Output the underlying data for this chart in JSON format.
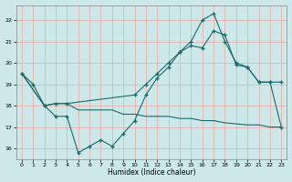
{
  "xlabel": "Humidex (Indice chaleur)",
  "xlim": [
    -0.5,
    23.5
  ],
  "ylim": [
    15.5,
    22.7
  ],
  "yticks": [
    16,
    17,
    18,
    19,
    20,
    21,
    22
  ],
  "xticks": [
    0,
    1,
    2,
    3,
    4,
    5,
    6,
    7,
    8,
    9,
    10,
    11,
    12,
    13,
    14,
    15,
    16,
    17,
    18,
    19,
    20,
    21,
    22,
    23
  ],
  "bg_color": "#cce8e8",
  "line_color": "#1a6b6b",
  "grid_color": "#e8b0b0",
  "line1_x": [
    0,
    1,
    2,
    3,
    4,
    5,
    6,
    7,
    8,
    9,
    10,
    11,
    12,
    13,
    14,
    15,
    16,
    17,
    18,
    19,
    20,
    21,
    22,
    23
  ],
  "line1_y": [
    19.5,
    19.0,
    18.0,
    17.5,
    17.5,
    15.8,
    16.1,
    16.4,
    16.1,
    16.7,
    17.3,
    18.5,
    19.3,
    19.8,
    20.5,
    21.0,
    22.0,
    22.3,
    21.0,
    20.0,
    19.8,
    19.1,
    19.1,
    17.0
  ],
  "line2_x": [
    0,
    2,
    3,
    4,
    5,
    6,
    7,
    8,
    9,
    10,
    11,
    12,
    13,
    14,
    15,
    16,
    17,
    18,
    20,
    21,
    22,
    23
  ],
  "line2_y": [
    19.5,
    18.0,
    18.1,
    18.1,
    17.8,
    17.8,
    17.8,
    17.8,
    17.6,
    17.6,
    17.5,
    17.5,
    17.5,
    17.4,
    17.4,
    17.3,
    17.3,
    17.2,
    17.1,
    17.1,
    17.0,
    17.0
  ],
  "line3_x": [
    0,
    2,
    3,
    4,
    10,
    11,
    12,
    13,
    14,
    15,
    16,
    17,
    18,
    19,
    20,
    21,
    22,
    23
  ],
  "line3_y": [
    19.5,
    18.0,
    18.1,
    18.1,
    18.5,
    19.0,
    19.5,
    20.0,
    20.5,
    20.8,
    20.7,
    21.5,
    21.3,
    19.9,
    19.8,
    19.1,
    19.1,
    19.1
  ]
}
